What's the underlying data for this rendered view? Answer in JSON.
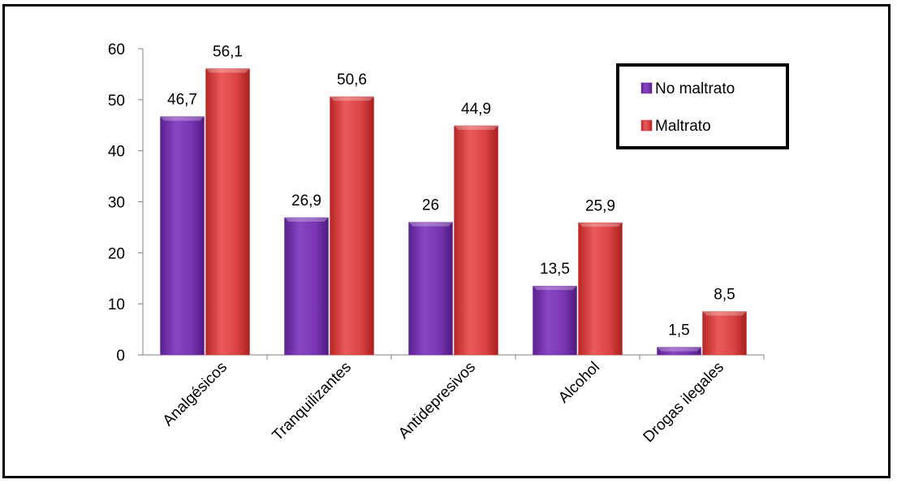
{
  "chart_data": {
    "type": "bar",
    "categories": [
      "Analgésicos",
      "Tranquilizantes",
      "Antidepresivos",
      "Alcohol",
      "Drogas ilegales"
    ],
    "series": [
      {
        "name": "No maltrato",
        "values": [
          46.7,
          26.9,
          26,
          13.5,
          1.5
        ],
        "labels": [
          "46,7",
          "26,9",
          "26",
          "13,5",
          "1,5"
        ],
        "color": "#7030a0"
      },
      {
        "name": "Maltrato",
        "values": [
          56.1,
          50.6,
          44.9,
          25.9,
          8.5
        ],
        "labels": [
          "56,1",
          "50,6",
          "44,9",
          "25,9",
          "8,5"
        ],
        "color": "#d63a3a"
      }
    ],
    "ylim": [
      0,
      60
    ],
    "yticks": [
      0,
      10,
      20,
      30,
      40,
      50,
      60
    ],
    "grid": false,
    "legend_position": "top-right"
  }
}
